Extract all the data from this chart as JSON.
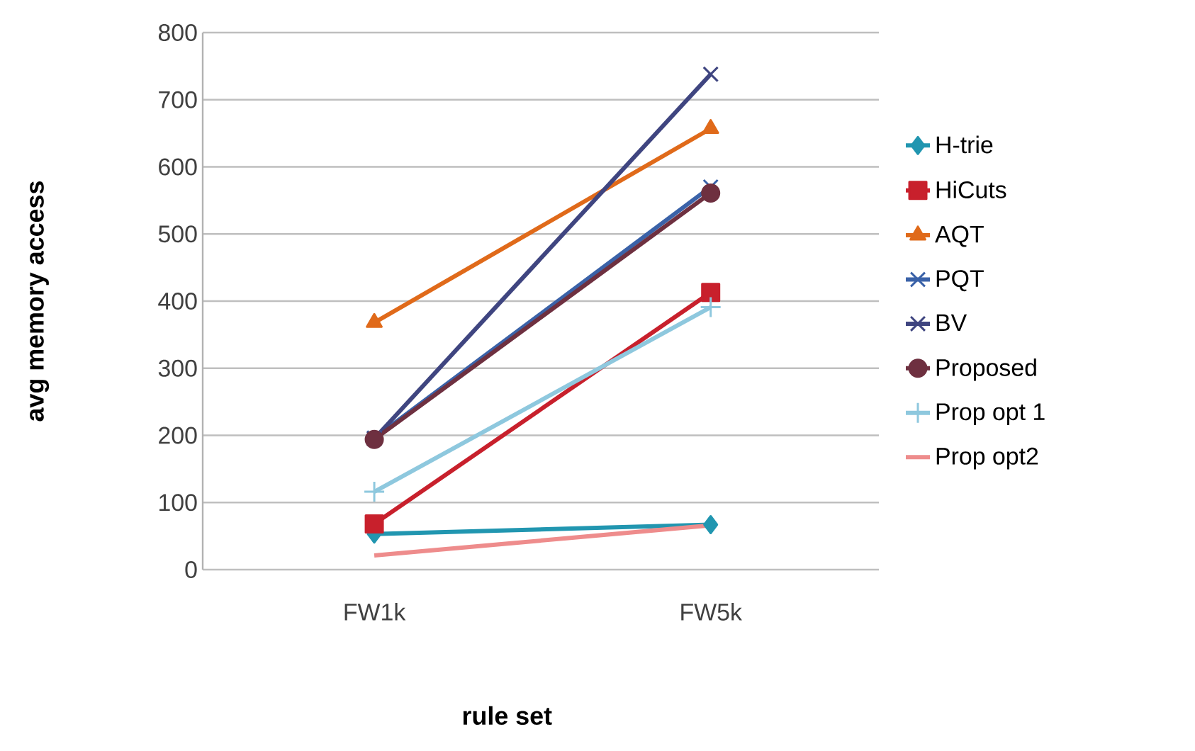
{
  "chart_data": {
    "type": "line",
    "xlabel": "rule set",
    "ylabel": "avg memory access",
    "categories": [
      "FW1k",
      "FW5k"
    ],
    "ylim": [
      0,
      800
    ],
    "yticks": [
      0,
      100,
      200,
      300,
      400,
      500,
      600,
      700,
      800
    ],
    "grid": "y",
    "legend": "right",
    "series": [
      {
        "name": "H-trie",
        "color": "#2196b0",
        "marker": "diamond",
        "values": [
          53,
          67
        ]
      },
      {
        "name": "HiCuts",
        "color": "#c8202c",
        "marker": "square",
        "values": [
          68,
          413
        ]
      },
      {
        "name": "AQT",
        "color": "#e06a1a",
        "marker": "triangle",
        "values": [
          368,
          657
        ]
      },
      {
        "name": "PQT",
        "color": "#3a62a8",
        "marker": "cross",
        "values": [
          196,
          570
        ]
      },
      {
        "name": "BV",
        "color": "#3f4580",
        "marker": "cross",
        "values": [
          195,
          738
        ]
      },
      {
        "name": "Proposed",
        "color": "#6e3040",
        "marker": "circle",
        "values": [
          194,
          561
        ]
      },
      {
        "name": "Prop opt 1",
        "color": "#8ec8de",
        "marker": "plus",
        "values": [
          116,
          391
        ]
      },
      {
        "name": "Prop opt2",
        "color": "#ee8c8c",
        "marker": "none",
        "values": [
          21,
          66
        ]
      }
    ]
  }
}
